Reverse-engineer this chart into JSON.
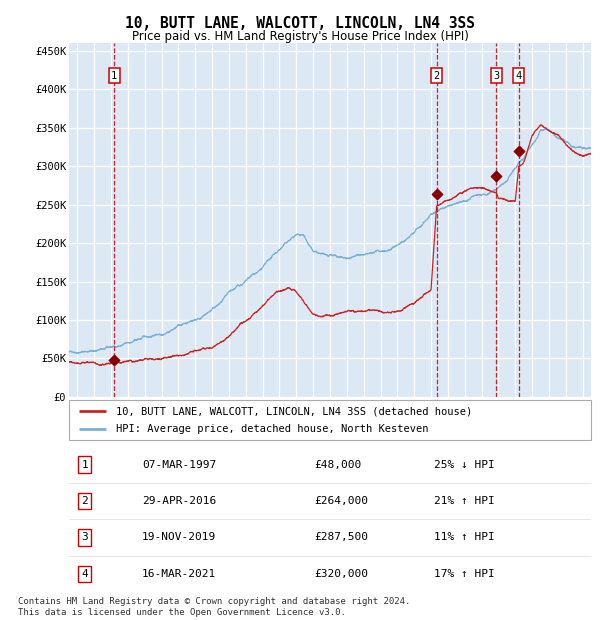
{
  "title": "10, BUTT LANE, WALCOTT, LINCOLN, LN4 3SS",
  "subtitle": "Price paid vs. HM Land Registry's House Price Index (HPI)",
  "background_color": "#dce9f5",
  "plot_bg_color": "#dce9f5",
  "red_line_label": "10, BUTT LANE, WALCOTT, LINCOLN, LN4 3SS (detached house)",
  "blue_line_label": "HPI: Average price, detached house, North Kesteven",
  "footer": "Contains HM Land Registry data © Crown copyright and database right 2024.\nThis data is licensed under the Open Government Licence v3.0.",
  "sales": [
    {
      "num": 1,
      "date": "07-MAR-1997",
      "price": 48000,
      "pct": "25%",
      "dir": "↓",
      "year": 1997.19
    },
    {
      "num": 2,
      "date": "29-APR-2016",
      "price": 264000,
      "pct": "21%",
      "dir": "↑",
      "year": 2016.33
    },
    {
      "num": 3,
      "date": "19-NOV-2019",
      "price": 287500,
      "pct": "11%",
      "dir": "↑",
      "year": 2019.88
    },
    {
      "num": 4,
      "date": "16-MAR-2021",
      "price": 320000,
      "pct": "17%",
      "dir": "↑",
      "year": 2021.21
    }
  ],
  "ylim": [
    0,
    460000
  ],
  "xlim_start": 1994.5,
  "xlim_end": 2025.5,
  "yticks": [
    0,
    50000,
    100000,
    150000,
    200000,
    250000,
    300000,
    350000,
    400000,
    450000
  ],
  "ytick_labels": [
    "£0",
    "£50K",
    "£100K",
    "£150K",
    "£200K",
    "£250K",
    "£300K",
    "£350K",
    "£400K",
    "£450K"
  ],
  "xticks": [
    1995,
    1996,
    1997,
    1998,
    1999,
    2000,
    2001,
    2002,
    2003,
    2004,
    2005,
    2006,
    2007,
    2008,
    2009,
    2010,
    2011,
    2012,
    2013,
    2014,
    2015,
    2016,
    2017,
    2018,
    2019,
    2020,
    2021,
    2022,
    2023,
    2024,
    2025
  ],
  "hpi_anchors_x": [
    1994.5,
    1995,
    1995.5,
    1996,
    1996.5,
    1997,
    1997.5,
    1998,
    1998.5,
    1999,
    1999.5,
    2000,
    2000.5,
    2001,
    2001.5,
    2002,
    2002.5,
    2003,
    2003.5,
    2004,
    2004.5,
    2005,
    2005.5,
    2006,
    2006.5,
    2007,
    2007.5,
    2008,
    2008.5,
    2009,
    2009.5,
    2010,
    2010.5,
    2011,
    2011.5,
    2012,
    2012.5,
    2013,
    2013.5,
    2014,
    2014.5,
    2015,
    2015.5,
    2016,
    2016.5,
    2017,
    2017.5,
    2018,
    2018.5,
    2019,
    2019.5,
    2020,
    2020.5,
    2021,
    2021.5,
    2022,
    2022.5,
    2023,
    2023.5,
    2024,
    2024.5,
    2025
  ],
  "hpi_anchors_y": [
    58000,
    60000,
    62000,
    63000,
    64000,
    65000,
    67000,
    69000,
    72000,
    75000,
    78000,
    82000,
    88000,
    93000,
    98000,
    103000,
    108000,
    115000,
    122000,
    130000,
    137000,
    143000,
    150000,
    157000,
    167000,
    178000,
    188000,
    196000,
    195000,
    175000,
    168000,
    163000,
    160000,
    161000,
    162000,
    161000,
    161000,
    163000,
    167000,
    173000,
    180000,
    188000,
    200000,
    213000,
    220000,
    225000,
    228000,
    232000,
    235000,
    237000,
    242000,
    248000,
    255000,
    272000,
    285000,
    300000,
    318000,
    315000,
    308000,
    302000,
    298000,
    295000
  ],
  "red_anchors_x": [
    1994.5,
    1995,
    1996,
    1997,
    1997.2,
    1998,
    1999,
    2000,
    2001,
    2002,
    2003,
    2004,
    2005,
    2006,
    2007,
    2007.5,
    2008,
    2009,
    2010,
    2011,
    2012,
    2013,
    2014,
    2015,
    2015.5,
    2016,
    2016.33,
    2016.4,
    2017,
    2018,
    2019,
    2019.88,
    2020,
    2021,
    2021.21,
    2021.5,
    2022,
    2022.5,
    2023,
    2023.5,
    2024,
    2024.5,
    2025
  ],
  "red_anchors_y": [
    46000,
    47000,
    48000,
    49000,
    48000,
    49000,
    50000,
    52000,
    54000,
    57000,
    68000,
    85000,
    105000,
    125000,
    148000,
    152000,
    150000,
    122000,
    122000,
    127000,
    128000,
    128000,
    130000,
    140000,
    148000,
    155000,
    264000,
    265000,
    272000,
    283000,
    290000,
    287500,
    280000,
    275000,
    320000,
    325000,
    360000,
    375000,
    370000,
    365000,
    355000,
    350000,
    345000
  ]
}
